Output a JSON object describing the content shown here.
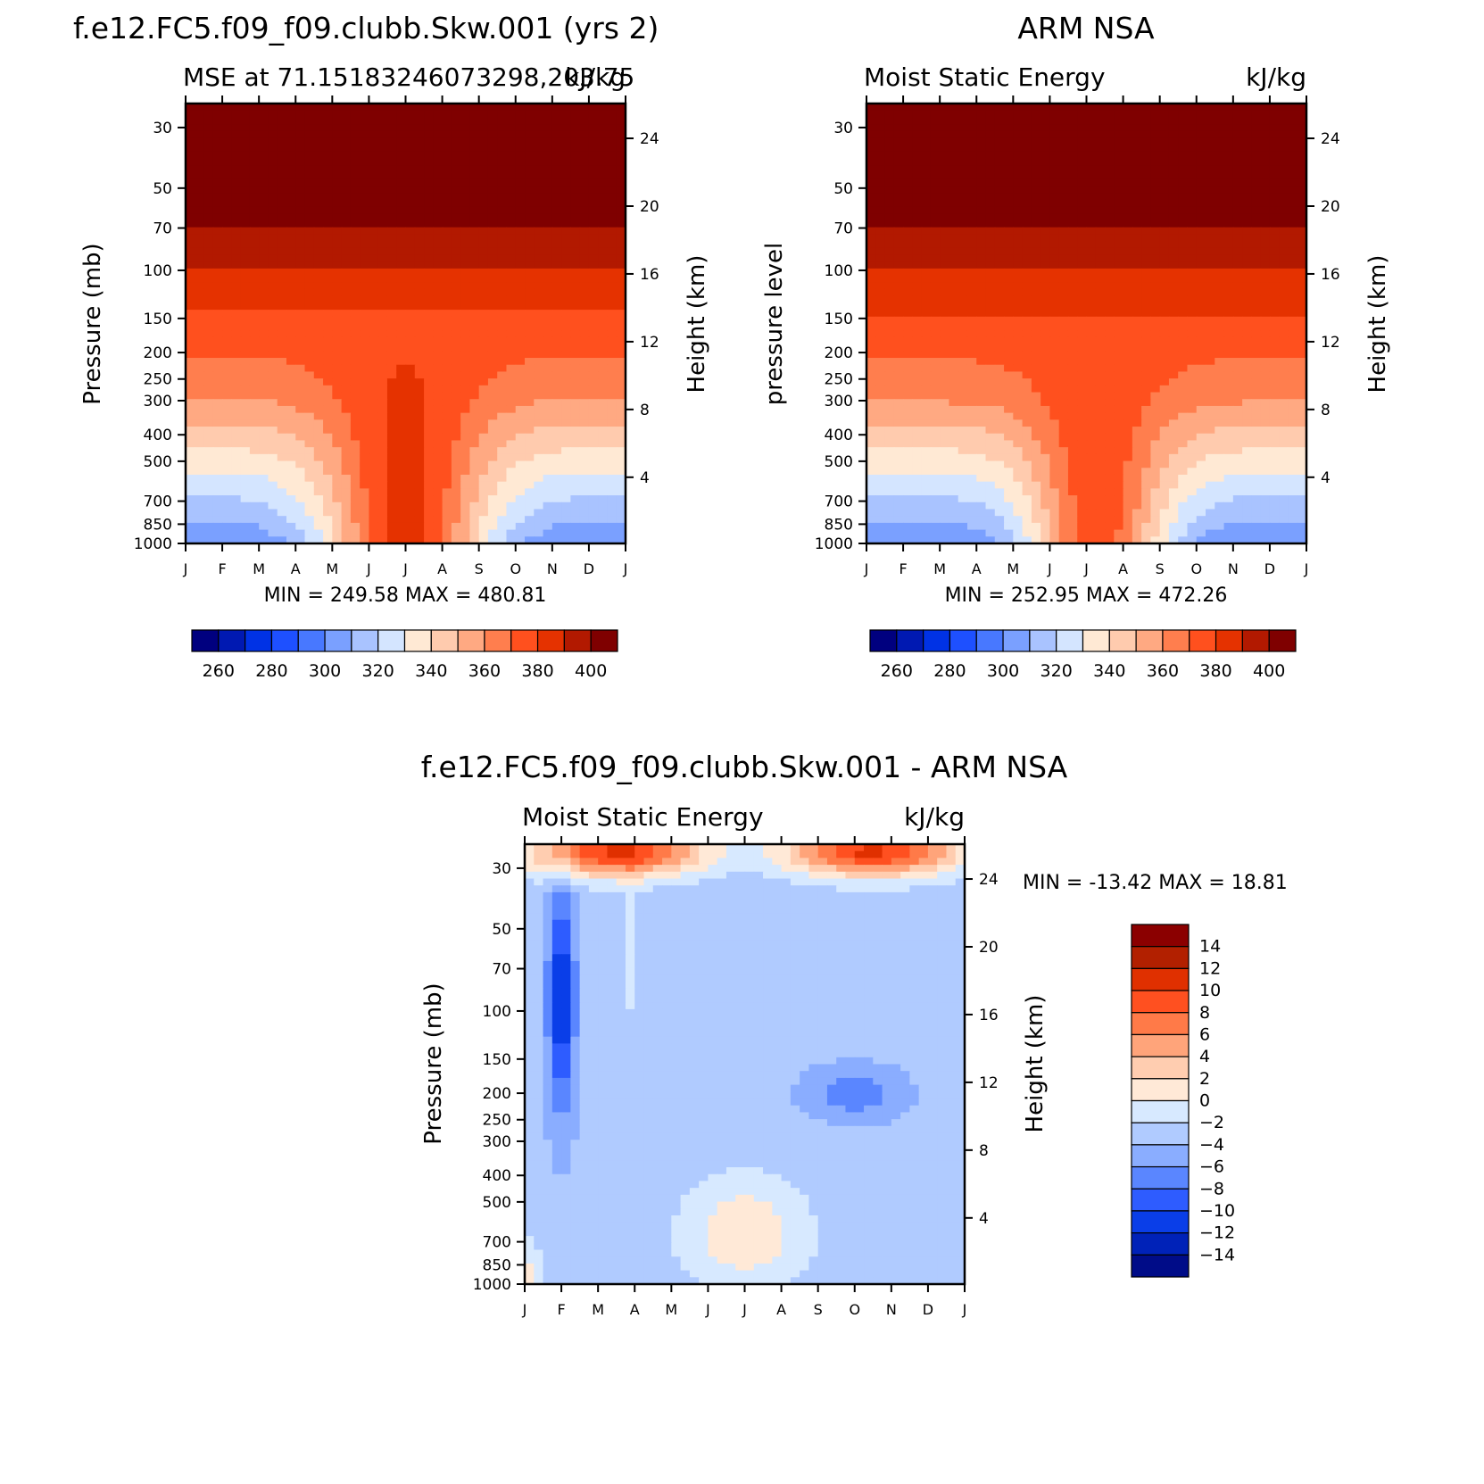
{
  "chart_data": [
    {
      "type": "contour",
      "title": "f.e12.FC5.f09_f09.clubb.Skw.001 (yrs 2)",
      "subtitle_left": "MSE at 71.15183246073298,203.75",
      "subtitle_right": "kJ/kg",
      "ylabel": "Pressure (mb)",
      "ylabel_right": "Height (km)",
      "stats": "MIN =  249.58  MAX =  480.81",
      "colorbar_labels": [
        "260",
        "280",
        "300",
        "320",
        "340",
        "360",
        "380",
        "400"
      ]
    },
    {
      "type": "contour",
      "title": "ARM NSA",
      "subtitle_left": "Moist Static Energy",
      "subtitle_right": "kJ/kg",
      "ylabel": "pressure level",
      "ylabel_right": "Height (km)",
      "stats": "MIN =  252.95  MAX =  472.26",
      "colorbar_labels": [
        "260",
        "280",
        "300",
        "320",
        "340",
        "360",
        "380",
        "400"
      ]
    },
    {
      "type": "contour",
      "title": "f.e12.FC5.f09_f09.clubb.Skw.001 - ARM NSA",
      "subtitle_left": "Moist Static Energy",
      "subtitle_right": "kJ/kg",
      "ylabel": "Pressure (mb)",
      "ylabel_right": "Height (km)",
      "stats": "MIN = -13.42 MAX =   18.81",
      "colorbar_labels": [
        "14",
        "12",
        "10",
        "8",
        "6",
        "4",
        "2",
        "0",
        "-2",
        "-4",
        "-6",
        "-8",
        "-10",
        "-12",
        "-14"
      ]
    }
  ],
  "axes": {
    "months": [
      "J",
      "F",
      "M",
      "A",
      "M",
      "J",
      "J",
      "A",
      "S",
      "O",
      "N",
      "D",
      "J"
    ],
    "pressure_levels": [
      30,
      50,
      70,
      100,
      150,
      200,
      250,
      300,
      400,
      500,
      700,
      850,
      1000
    ],
    "pressure_labels": [
      "30",
      "50",
      "70",
      "100",
      "150",
      "200",
      "250",
      "300",
      "400",
      "500",
      "700",
      "850",
      "1000"
    ],
    "height_km": [
      4,
      8,
      12,
      16,
      20,
      24
    ],
    "height_labels": [
      "4",
      "8",
      "12",
      "16",
      "20",
      "24"
    ]
  },
  "colors": {
    "mse_scale": [
      "#00007f",
      "#0019b2",
      "#0032e5",
      "#1e50ff",
      "#4878ff",
      "#7aa0ff",
      "#a9c3ff",
      "#d4e5ff",
      "#ffe9d4",
      "#ffcbae",
      "#ffa982",
      "#ff7e4e",
      "#ff501e",
      "#e53200",
      "#b21900",
      "#7f0000"
    ],
    "diff_scale": [
      "#8b0000",
      "#b22000",
      "#e03000",
      "#ff5020",
      "#ff7a48",
      "#ffa47a",
      "#ffcdb0",
      "#ffe9d7",
      "#d7e9ff",
      "#b0cbff",
      "#8aadff",
      "#5a86ff",
      "#2e5cff",
      "#0a3ee8",
      "#0022b8",
      "#000c88"
    ]
  }
}
